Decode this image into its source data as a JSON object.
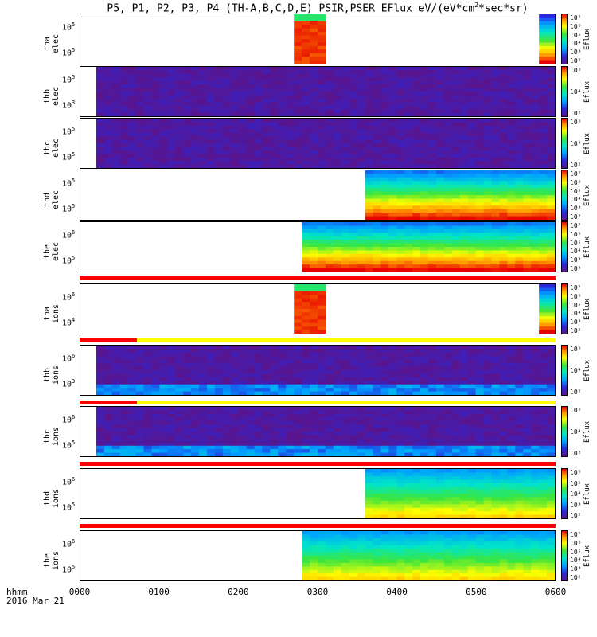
{
  "title": {
    "main": "P5, P1, P2, P3, P4 (TH-A,B,C,D,E) PSIR,PSER EFlux eV/(eV*cm",
    "sup1": "2",
    "rest": "*sec*sr)"
  },
  "xaxis": {
    "label_line1": "hhmm",
    "label_line2": "2016 Mar 21",
    "ticks": [
      "0000",
      "0100",
      "0200",
      "0300",
      "0400",
      "0500",
      "0600"
    ]
  },
  "colorbar_label": "Eflux",
  "colors": {
    "flag_red": "#ff0000",
    "flag_yellow": "#ffff00",
    "purple": "#5a1a8a"
  },
  "chart_data": {
    "type": "heatmap",
    "x_range_hours": [
      0,
      6
    ],
    "x_tick_labels": [
      "0000",
      "0100",
      "0200",
      "0300",
      "0400",
      "0500",
      "0600"
    ],
    "color_scale": "log",
    "panels": [
      {
        "label": [
          "tha",
          "elec"
        ],
        "yticks": [
          {
            "base": "10",
            "exp": "5"
          },
          {
            "base": "10",
            "exp": "5"
          }
        ],
        "cbticks": [
          "10⁷",
          "10⁶",
          "10⁵",
          "10⁴",
          "10³",
          "10²"
        ],
        "colorbar": "Eflux",
        "data_start": "0240",
        "data_end": "0305",
        "data_resume": "0550",
        "style": "hot-block"
      },
      {
        "label": [
          "thb",
          "elec"
        ],
        "yticks": [
          {
            "base": "10",
            "exp": "5"
          },
          {
            "base": "10",
            "exp": "3"
          }
        ],
        "cbticks": [
          "10⁶",
          "10⁴",
          "10²"
        ],
        "colorbar": "Eflux",
        "data_start": "0014",
        "style": "noise-purple"
      },
      {
        "label": [
          "thc",
          "elec"
        ],
        "yticks": [
          {
            "base": "10",
            "exp": "5"
          },
          {
            "base": "10",
            "exp": "5"
          }
        ],
        "cbticks": [
          "10⁶",
          "10⁴",
          "10²"
        ],
        "colorbar": "Eflux",
        "data_start": "0012",
        "style": "noise-purple"
      },
      {
        "label": [
          "thd",
          "elec"
        ],
        "yticks": [
          {
            "base": "10",
            "exp": "5"
          },
          {
            "base": "10",
            "exp": "5"
          }
        ],
        "cbticks": [
          "10⁷",
          "10⁶",
          "10⁵",
          "10⁴",
          "10³",
          "10²"
        ],
        "colorbar": "Eflux",
        "data_start": "0334",
        "style": "gradient-hot"
      },
      {
        "label": [
          "the",
          "elec"
        ],
        "yticks": [
          {
            "base": "10",
            "exp": "6"
          },
          {
            "base": "10",
            "exp": "5"
          }
        ],
        "cbticks": [
          "10⁷",
          "10⁶",
          "10⁵",
          "10⁴",
          "10³",
          "10²"
        ],
        "colorbar": "Eflux",
        "data_start": "0249",
        "style": "gradient-hot"
      },
      {
        "label": [
          "tha",
          "ions"
        ],
        "yticks": [
          {
            "base": "10",
            "exp": "6"
          },
          {
            "base": "10",
            "exp": "4"
          }
        ],
        "cbticks": [
          "10⁷",
          "10⁶",
          "10⁵",
          "10⁴",
          "10³",
          "10²"
        ],
        "colorbar": "Eflux",
        "data_start": "0240",
        "data_end": "0305",
        "data_resume": "0550",
        "style": "hot-block"
      },
      {
        "label": [
          "thb",
          "ions"
        ],
        "yticks": [
          {
            "base": "10",
            "exp": "6"
          },
          {
            "base": "10",
            "exp": "3"
          }
        ],
        "cbticks": [
          "10⁶",
          "10⁴",
          "10²"
        ],
        "colorbar": "Eflux",
        "data_start": "0014",
        "style": "noise-purple-blue"
      },
      {
        "label": [
          "thc",
          "ions"
        ],
        "yticks": [
          {
            "base": "10",
            "exp": "6"
          },
          {
            "base": "10",
            "exp": "5"
          }
        ],
        "cbticks": [
          "10⁶",
          "10⁴",
          "10²"
        ],
        "colorbar": "Eflux",
        "data_start": "0012",
        "style": "noise-purple-blue"
      },
      {
        "label": [
          "thd",
          "ions"
        ],
        "yticks": [
          {
            "base": "10",
            "exp": "6"
          },
          {
            "base": "10",
            "exp": "5"
          }
        ],
        "cbticks": [
          "10⁶",
          "10⁵",
          "10⁴",
          "10³",
          "10²"
        ],
        "colorbar": "Eflux",
        "data_start": "0334",
        "style": "gradient-green"
      },
      {
        "label": [
          "the",
          "ions"
        ],
        "yticks": [
          {
            "base": "10",
            "exp": "6"
          },
          {
            "base": "10",
            "exp": "5"
          }
        ],
        "cbticks": [
          "10⁷",
          "10⁶",
          "10⁵",
          "10⁴",
          "10³",
          "10²"
        ],
        "colorbar": "Eflux",
        "data_start": "0249",
        "style": "gradient-green"
      }
    ]
  }
}
